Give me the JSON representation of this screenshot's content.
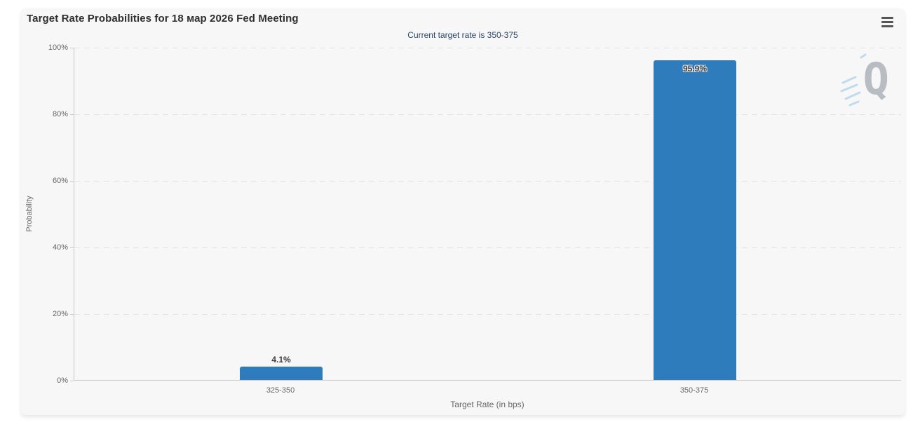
{
  "chart": {
    "title": "Target Rate Probabilities for 18 мар 2026 Fed Meeting",
    "subtitle": "Current target rate is 350-375",
    "watermark_letter": "Q"
  },
  "chart_data": {
    "type": "bar",
    "title": "Target Rate Probabilities for 18 мар 2026 Fed Meeting",
    "subtitle": "Current target rate is 350-375",
    "categories": [
      "325-350",
      "350-375"
    ],
    "values": [
      4.1,
      95.9
    ],
    "value_labels": [
      "4.1%",
      "95.9%"
    ],
    "xlabel": "Target Rate (in bps)",
    "ylabel": "Probability",
    "ylim": [
      0,
      100
    ],
    "ytick_labels": [
      "0%",
      "20%",
      "40%",
      "60%",
      "80%",
      "100%"
    ],
    "grid": "horizontal-dashed",
    "legend": "none",
    "bar_color": "#2f7cbc"
  },
  "colors": {
    "card_background": "#f7f7f7",
    "bar": "#2f7cbc",
    "title_text": "#2f2f2f",
    "subtitle_text": "#2c4a6b",
    "axis_text": "#666666",
    "gridline": "#e3e3e3",
    "axis_line": "#c9c9c9",
    "watermark": "#b7bdc3",
    "watermark_streaks": "#b9d8ec"
  }
}
